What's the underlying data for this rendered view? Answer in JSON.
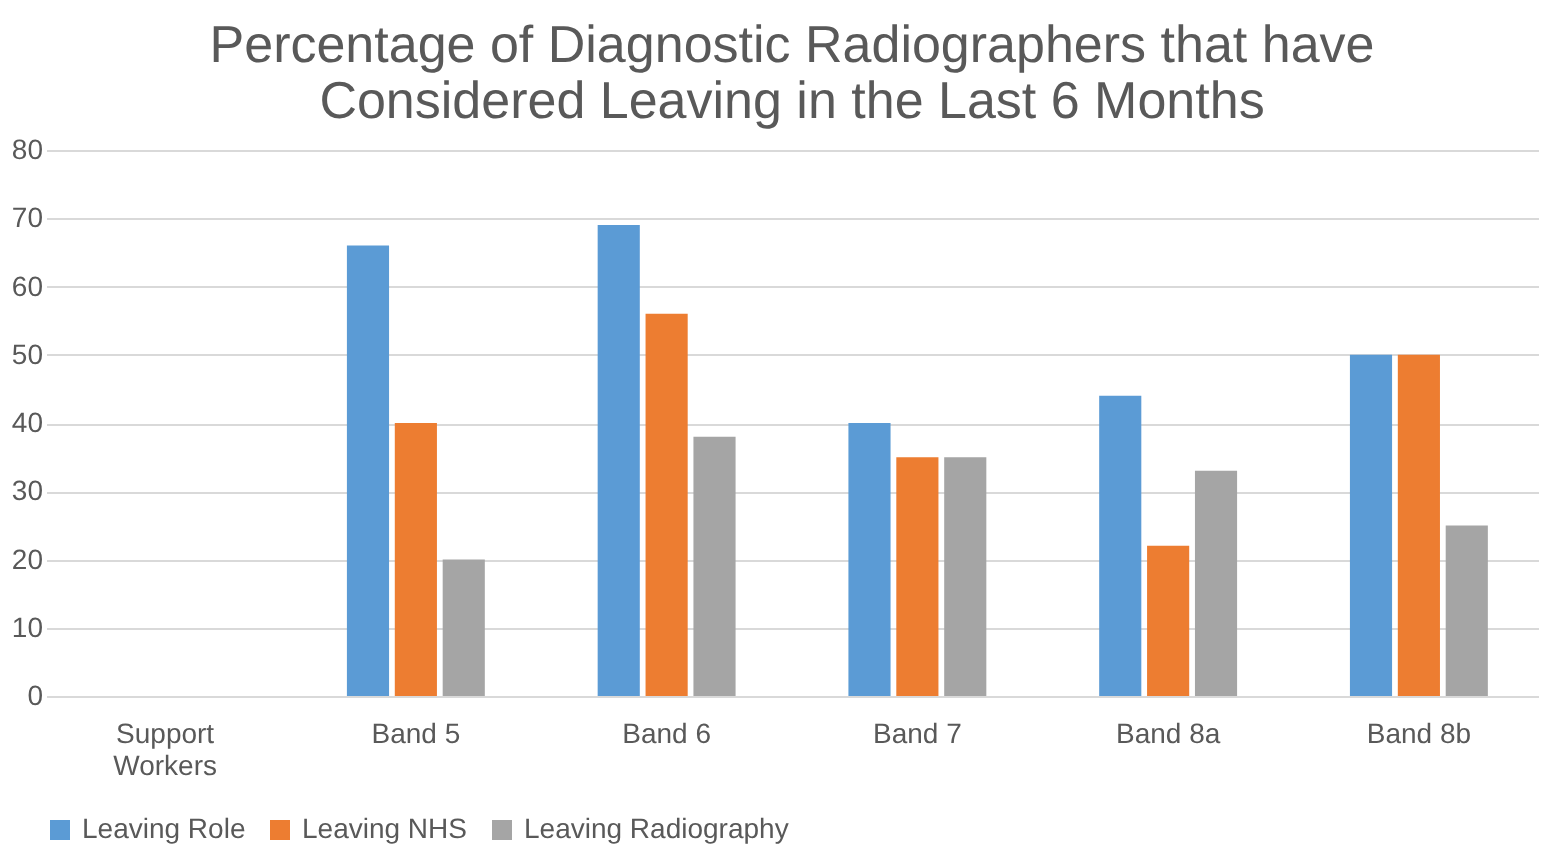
{
  "chart_data": {
    "type": "bar",
    "title": "Percentage of Diagnostic Radiographers that have Considered Leaving in the Last 6 Months",
    "categories": [
      "Support Workers",
      "Band 5",
      "Band 6",
      "Band 7",
      "Band 8a",
      "Band 8b"
    ],
    "series": [
      {
        "name": "Leaving Role",
        "color": "#5b9bd5",
        "values": [
          null,
          66,
          69,
          40,
          44,
          50
        ]
      },
      {
        "name": "Leaving NHS",
        "color": "#ed7d31",
        "values": [
          null,
          40,
          56,
          35,
          22,
          50
        ]
      },
      {
        "name": "Leaving Radiography",
        "color": "#a5a5a5",
        "values": [
          null,
          20,
          38,
          35,
          33,
          25
        ]
      }
    ],
    "ylim": [
      0,
      80
    ],
    "yticks": [
      0,
      10,
      20,
      30,
      40,
      50,
      60,
      70,
      80
    ],
    "grid": "y",
    "legend": "bottom"
  }
}
